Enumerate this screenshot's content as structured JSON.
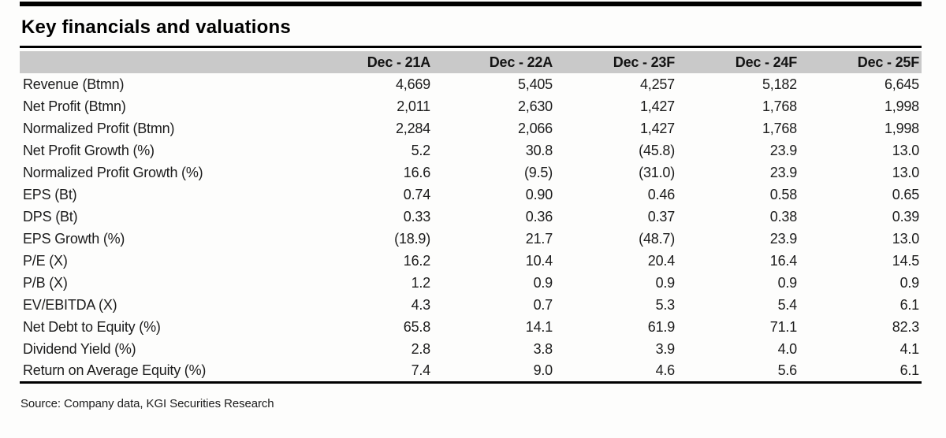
{
  "page": {
    "title": "Key financials and valuations",
    "source": "Source: Company data, KGI Securities Research"
  },
  "colors": {
    "header_band": "#c9c9c9",
    "rule": "#000000",
    "text": "#1c1c1c"
  },
  "chart_data": {
    "type": "table",
    "title": "Key financials and valuations",
    "columns": [
      "Dec - 21A",
      "Dec - 22A",
      "Dec - 23F",
      "Dec - 24F",
      "Dec - 25F"
    ],
    "rows": [
      {
        "label": "Revenue (Btmn)",
        "values": [
          "4,669",
          "5,405",
          "4,257",
          "5,182",
          "6,645"
        ]
      },
      {
        "label": "Net Profit (Btmn)",
        "values": [
          "2,011",
          "2,630",
          "1,427",
          "1,768",
          "1,998"
        ]
      },
      {
        "label": "Normalized Profit (Btmn)",
        "values": [
          "2,284",
          "2,066",
          "1,427",
          "1,768",
          "1,998"
        ]
      },
      {
        "label": "Net Profit Growth (%)",
        "values": [
          "5.2",
          "30.8",
          "(45.8)",
          "23.9",
          "13.0"
        ]
      },
      {
        "label": "Normalized Profit Growth (%)",
        "values": [
          "16.6",
          "(9.5)",
          "(31.0)",
          "23.9",
          "13.0"
        ]
      },
      {
        "label": "EPS (Bt)",
        "values": [
          "0.74",
          "0.90",
          "0.46",
          "0.58",
          "0.65"
        ]
      },
      {
        "label": "DPS (Bt)",
        "values": [
          "0.33",
          "0.36",
          "0.37",
          "0.38",
          "0.39"
        ]
      },
      {
        "label": "EPS Growth (%)",
        "values": [
          "(18.9)",
          "21.7",
          "(48.7)",
          "23.9",
          "13.0"
        ]
      },
      {
        "label": "P/E (X)",
        "values": [
          "16.2",
          "10.4",
          "20.4",
          "16.4",
          "14.5"
        ]
      },
      {
        "label": "P/B (X)",
        "values": [
          "1.2",
          "0.9",
          "0.9",
          "0.9",
          "0.9"
        ]
      },
      {
        "label": "EV/EBITDA (X)",
        "values": [
          "4.3",
          "0.7",
          "5.3",
          "5.4",
          "6.1"
        ]
      },
      {
        "label": "Net Debt to Equity (%)",
        "values": [
          "65.8",
          "14.1",
          "61.9",
          "71.1",
          "82.3"
        ]
      },
      {
        "label": "Dividend Yield (%)",
        "values": [
          "2.8",
          "3.8",
          "3.9",
          "4.0",
          "4.1"
        ]
      },
      {
        "label": "Return on Average Equity (%)",
        "values": [
          "7.4",
          "9.0",
          "4.6",
          "5.6",
          "6.1"
        ]
      }
    ]
  }
}
